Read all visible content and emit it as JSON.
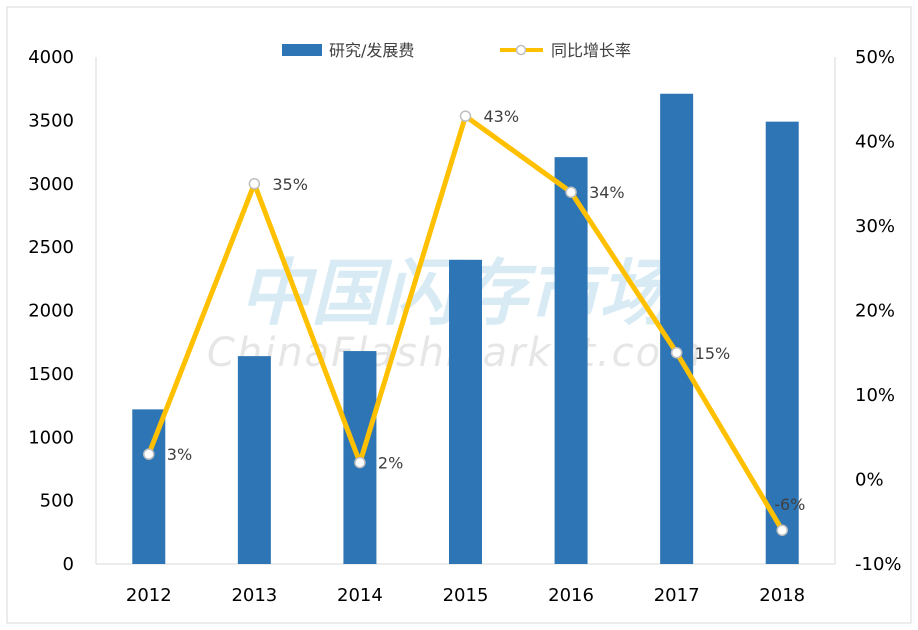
{
  "watermark": {
    "cn": "中国闪存市场",
    "en": "ChinaFlashMarket.com"
  },
  "colors": {
    "bar": "#2e75b6",
    "line": "#ffc000",
    "marker_fill": "#ffffff",
    "marker_stroke": "#bfbfbf"
  },
  "chart_data": {
    "type": "bar",
    "title": "",
    "categories": [
      "2012",
      "2013",
      "2014",
      "2015",
      "2016",
      "2017",
      "2018"
    ],
    "series": [
      {
        "name": "研究/发展费",
        "type": "bar",
        "axis": "left",
        "values": [
          1220,
          1640,
          1680,
          2400,
          3210,
          3710,
          3490
        ]
      },
      {
        "name": "同比增长率",
        "type": "line",
        "axis": "right",
        "values": [
          3,
          35,
          2,
          43,
          34,
          15,
          -6
        ],
        "labels": [
          "3%",
          "35%",
          "2%",
          "43%",
          "34%",
          "15%",
          "-6%"
        ]
      }
    ],
    "y_left": {
      "min": 0,
      "max": 4000,
      "ticks": [
        "0",
        "500",
        "1000",
        "1500",
        "2000",
        "2500",
        "3000",
        "3500",
        "4000"
      ]
    },
    "y_right": {
      "min": -10,
      "max": 50,
      "ticks": [
        "-10%",
        "0%",
        "10%",
        "20%",
        "30%",
        "40%",
        "50%"
      ]
    },
    "grid": false,
    "legend_position": "top-center"
  }
}
